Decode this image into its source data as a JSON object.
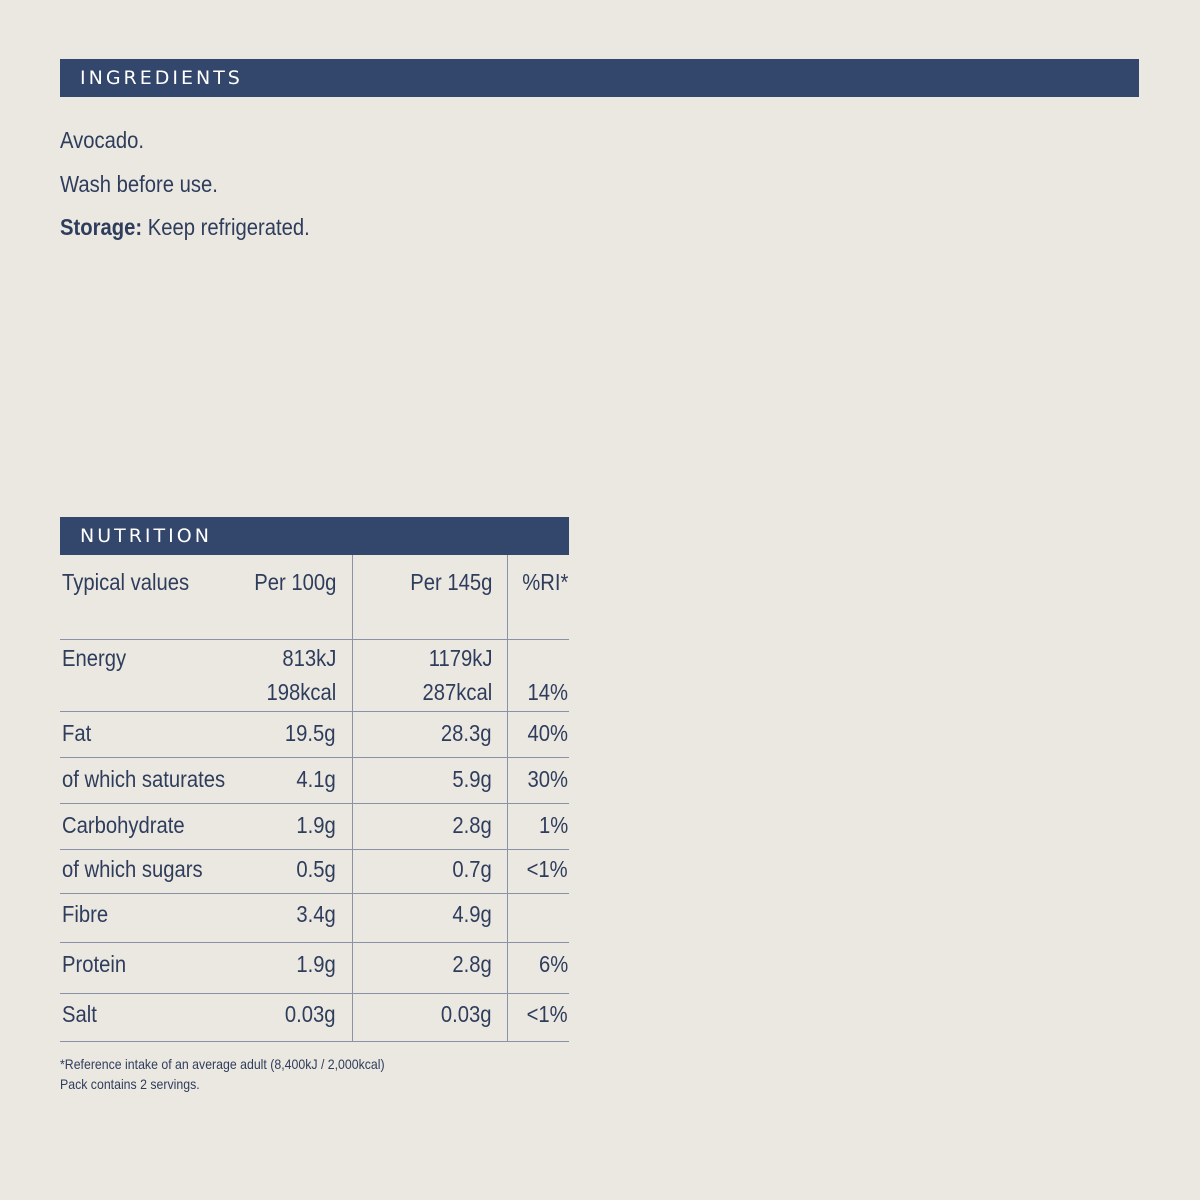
{
  "ingredients": {
    "heading": "INGREDIENTS",
    "line1": "Avocado.",
    "line2": "Wash before use.",
    "storage_label": "Storage:",
    "storage_text": "Keep refrigerated."
  },
  "nutrition": {
    "heading": "NUTRITION",
    "headers": [
      "Typical values",
      "Per 100g",
      "Per 145g",
      "%RI*"
    ],
    "energy": {
      "label": "Energy",
      "per100_kj": "813kJ",
      "per100_kcal": "198kcal",
      "per145_kj": "1179kJ",
      "per145_kcal": "287kcal",
      "ri": "14%"
    },
    "rows": [
      {
        "label": "Fat",
        "per100": "19.5g",
        "per145": "28.3g",
        "ri": "40%"
      },
      {
        "label": "of which saturates",
        "per100": "4.1g",
        "per145": "5.9g",
        "ri": "30%"
      },
      {
        "label": "Carbohydrate",
        "per100": "1.9g",
        "per145": "2.8g",
        "ri": "1%"
      },
      {
        "label": "of which sugars",
        "per100": "0.5g",
        "per145": "0.7g",
        "ri": "<1%"
      },
      {
        "label": "Fibre",
        "per100": "3.4g",
        "per145": "4.9g",
        "ri": ""
      },
      {
        "label": "Protein",
        "per100": "1.9g",
        "per145": "2.8g",
        "ri": "6%"
      },
      {
        "label": "Salt",
        "per100": "0.03g",
        "per145": "0.03g",
        "ri": "<1%"
      }
    ],
    "footnote1": "*Reference intake of an average adult (8,400kJ / 2,000kcal)",
    "footnote2": "Pack contains 2 servings."
  }
}
